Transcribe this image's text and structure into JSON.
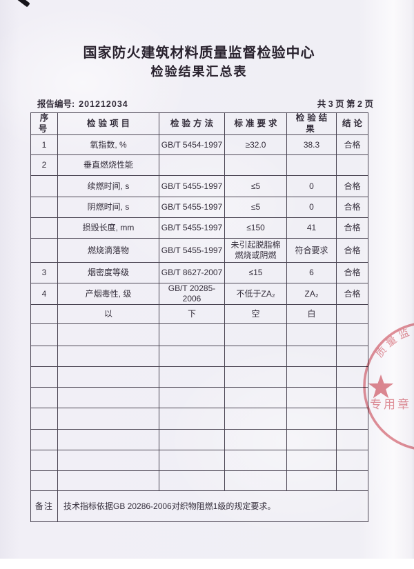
{
  "page": {
    "title_line1": "国家防火建筑材料质量监督检验中心",
    "title_line2": "检验结果汇总表",
    "report_no_label": "报告编号:",
    "report_no": "201212034",
    "page_info": "共 3 页 第 2 页"
  },
  "table": {
    "headers": [
      "序号",
      "检验项目",
      "检验方法",
      "标准要求",
      "检验结果",
      "结论"
    ],
    "rows": [
      [
        "1",
        "氧指数, %",
        "GB/T 5454-1997",
        "≥32.0",
        "38.3",
        "合格"
      ],
      [
        "2",
        "垂直燃烧性能",
        "",
        "",
        "",
        ""
      ],
      [
        "",
        "续燃时间, s",
        "GB/T 5455-1997",
        "≤5",
        "0",
        "合格"
      ],
      [
        "",
        "阴燃时间, s",
        "GB/T 5455-1997",
        "≤5",
        "0",
        "合格"
      ],
      [
        "",
        "损毁长度, mm",
        "GB/T 5455-1997",
        "≤150",
        "41",
        "合格"
      ],
      [
        "",
        "燃烧滴落物",
        "GB/T 5455-1997",
        "未引起脱脂棉\n燃烧或阴燃",
        "符合要求",
        "合格"
      ],
      [
        "3",
        "烟密度等级",
        "GB/T 8627-2007",
        "≤15",
        "6",
        "合格"
      ],
      [
        "4",
        "产烟毒性, 级",
        "GB/T 20285-2006",
        "不低于ZA₂",
        "ZA₂",
        "合格"
      ],
      [
        "",
        "以",
        "下",
        "空",
        "白",
        ""
      ]
    ],
    "empty_row_count": 8,
    "remark_label": "备注",
    "remark_text": "技术指标依据GB 20286-2006对织物阻燃1级的规定要求。"
  },
  "stamp": {
    "arc_text": "质量监",
    "bottom_text": "专用章",
    "color": "#d96b75"
  }
}
